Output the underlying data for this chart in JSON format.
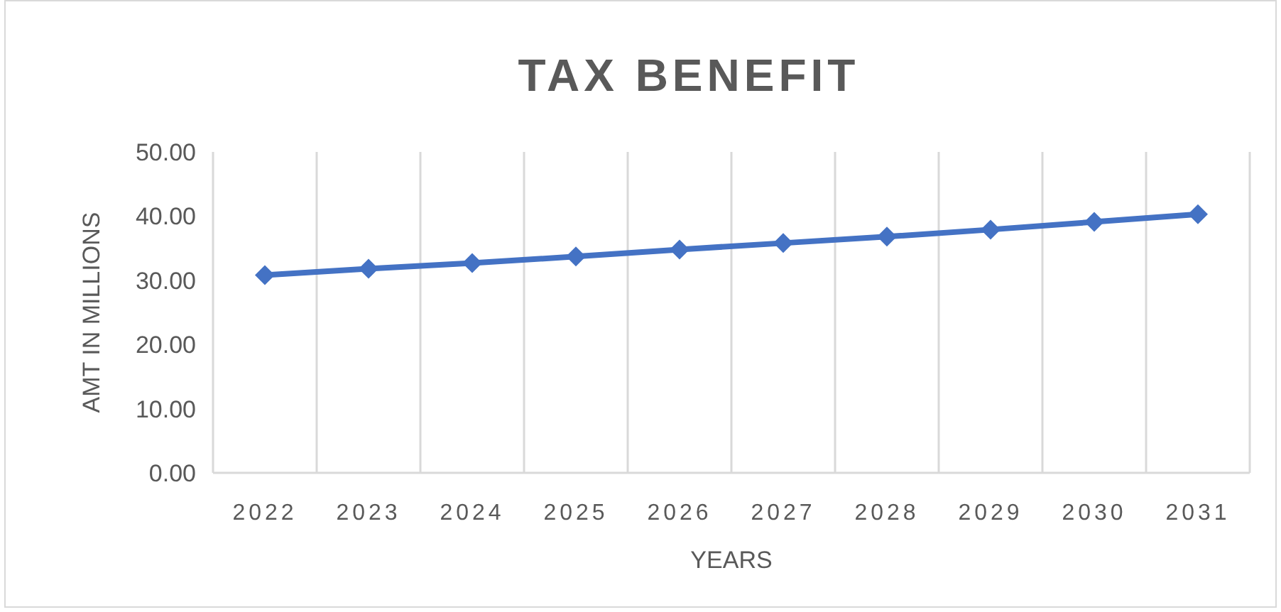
{
  "chart_data": {
    "type": "line",
    "title": "TAX BENEFIT",
    "xlabel": "YEARS",
    "ylabel": "AMT IN MILLIONS",
    "categories": [
      "2022",
      "2023",
      "2024",
      "2025",
      "2026",
      "2027",
      "2028",
      "2029",
      "2030",
      "2031"
    ],
    "series": [
      {
        "color": "#4472c4",
        "values": [
          30.8,
          31.8,
          32.7,
          33.7,
          34.8,
          35.8,
          36.8,
          37.9,
          39.1,
          40.3
        ]
      }
    ],
    "ylim": [
      0,
      50
    ],
    "yticks": [
      {
        "value": 0,
        "label": "0.00"
      },
      {
        "value": 10,
        "label": "10.00"
      },
      {
        "value": 20,
        "label": "20.00"
      },
      {
        "value": 30,
        "label": "30.00"
      },
      {
        "value": 40,
        "label": "40.00"
      },
      {
        "value": 50,
        "label": "50.00"
      }
    ],
    "grid": "x",
    "marker": "diamond",
    "line_style": "solid"
  }
}
